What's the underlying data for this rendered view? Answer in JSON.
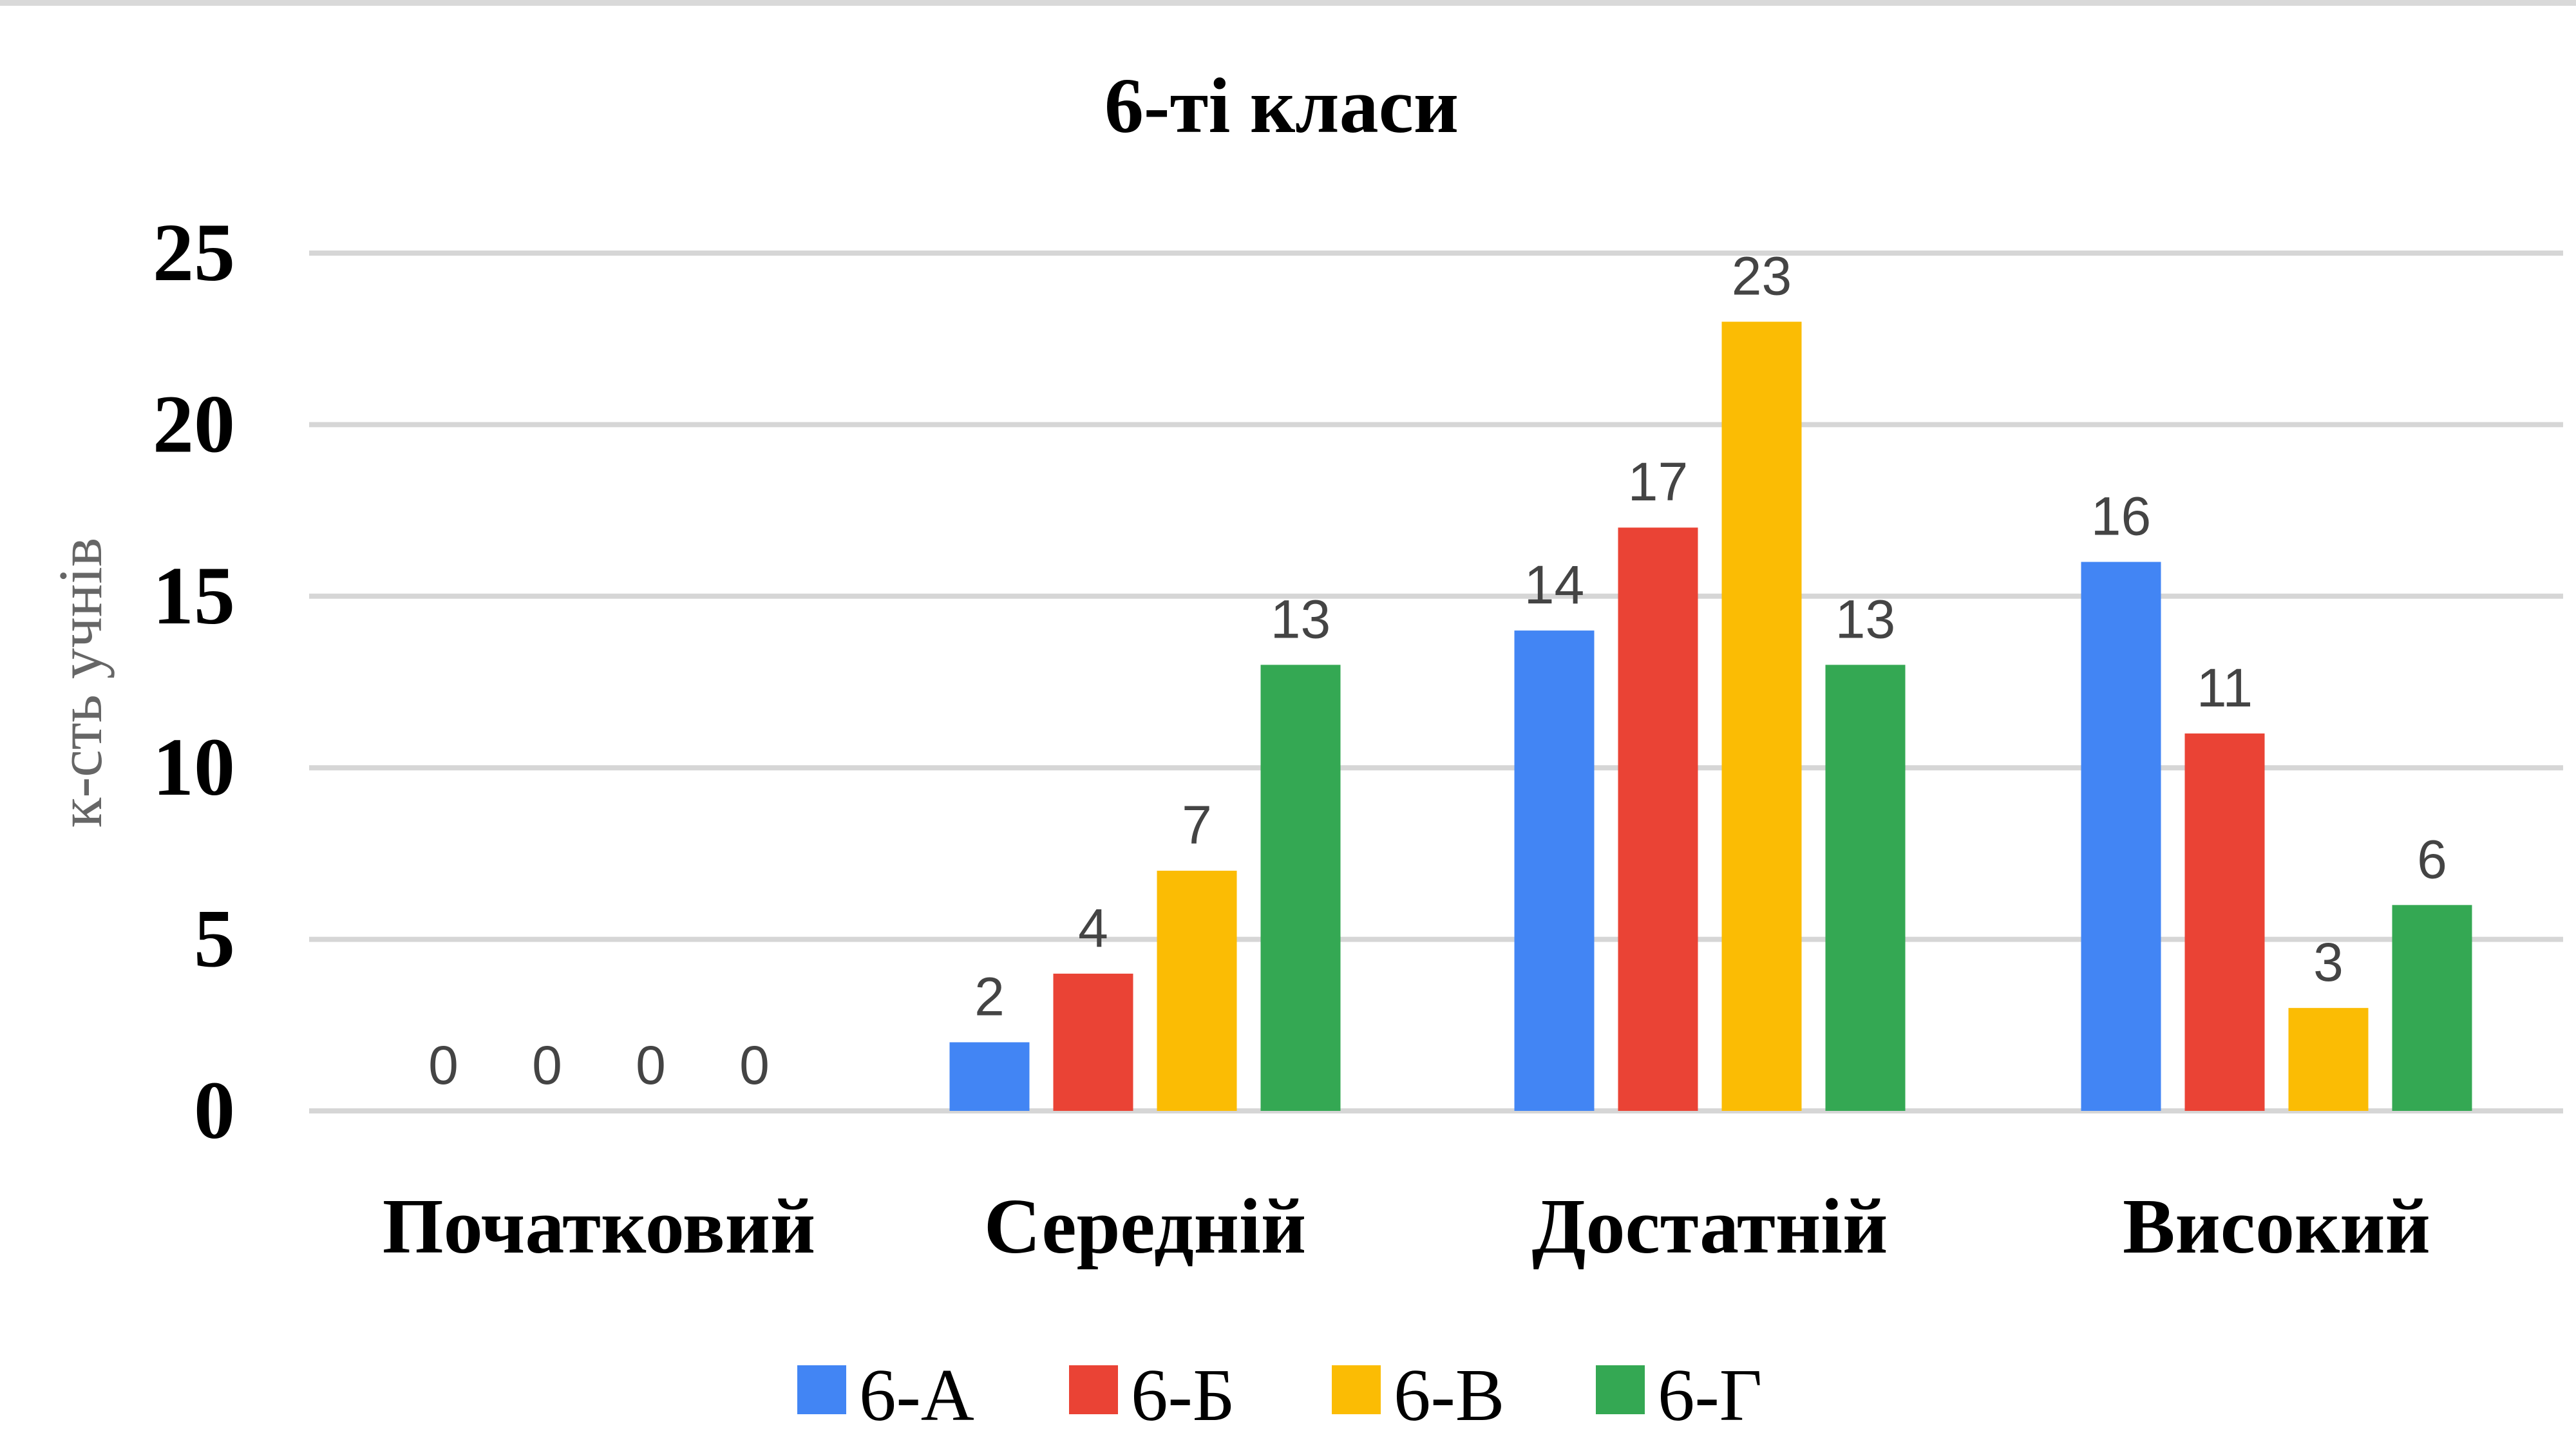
{
  "chart_data": {
    "type": "bar",
    "title": "6-ті класи",
    "xlabel": "",
    "ylabel": "к-сть учнів",
    "categories": [
      "Початковий",
      "Середній",
      "Достатній",
      "Високий"
    ],
    "series": [
      {
        "name": "6-А",
        "color": "#4285f4",
        "values": [
          0,
          2,
          14,
          16
        ]
      },
      {
        "name": "6-Б",
        "color": "#ea4335",
        "values": [
          0,
          4,
          17,
          11
        ]
      },
      {
        "name": "6-В",
        "color": "#fbbc04",
        "values": [
          0,
          7,
          23,
          3
        ]
      },
      {
        "name": "6-Г",
        "color": "#34a853",
        "values": [
          0,
          13,
          13,
          6
        ]
      }
    ],
    "ylim": [
      0,
      25
    ],
    "yticks": [
      0,
      5,
      10,
      15,
      20,
      25
    ],
    "grid": true,
    "legend_position": "bottom",
    "data_labels": true
  }
}
